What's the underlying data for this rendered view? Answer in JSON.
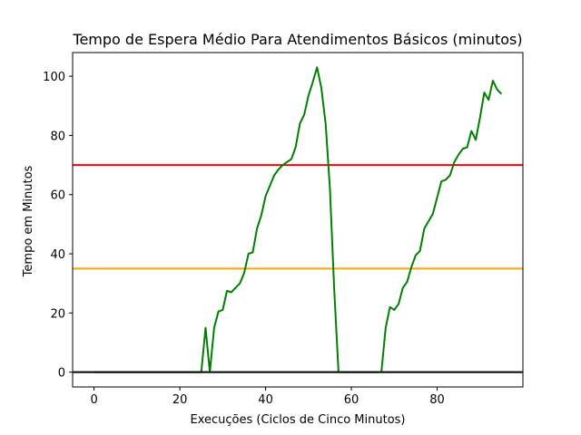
{
  "chart_data": {
    "type": "line",
    "title": "Tempo de Espera Médio Para Atendimentos Básicos (minutos)",
    "xlabel": "Execuções (Ciclos de Cinco Minutos)",
    "ylabel": "Tempo em Minutos",
    "xlim": [
      -5,
      100
    ],
    "ylim": [
      -5,
      108
    ],
    "xticks": [
      0,
      20,
      40,
      60,
      80
    ],
    "yticks": [
      0,
      20,
      40,
      60,
      80,
      100
    ],
    "grid": false,
    "series": [
      {
        "color": "#008000",
        "x": [
          0,
          1,
          2,
          3,
          4,
          5,
          6,
          7,
          8,
          9,
          10,
          11,
          12,
          13,
          14,
          15,
          16,
          17,
          18,
          19,
          20,
          21,
          22,
          23,
          24,
          25,
          26,
          27,
          28,
          29,
          30,
          31,
          32,
          33,
          34,
          35,
          36,
          37,
          38,
          39,
          40,
          41,
          42,
          43,
          44,
          45,
          46,
          47,
          48,
          49,
          50,
          51,
          52,
          53,
          54,
          55,
          56,
          57,
          58,
          59,
          60,
          61,
          62,
          63,
          64,
          65,
          66,
          67,
          68,
          69,
          70,
          71,
          72,
          73,
          74,
          75,
          76,
          77,
          78,
          79,
          80,
          81,
          82,
          83,
          84,
          85,
          86,
          87,
          88,
          89,
          90,
          91,
          92,
          93,
          94,
          95
        ],
        "y": [
          0,
          0,
          0,
          0,
          0,
          0,
          0,
          0,
          0,
          0,
          0,
          0,
          0,
          0,
          0,
          0,
          0,
          0,
          0,
          0,
          0,
          0,
          0,
          0,
          0,
          0,
          15,
          0,
          15,
          20.5,
          21,
          27.5,
          27,
          28.5,
          30,
          33.5,
          40,
          40.5,
          48.5,
          53,
          59.5,
          63,
          66.5,
          68.5,
          70,
          71,
          72,
          76,
          84,
          87,
          93.5,
          98,
          103,
          96,
          84,
          62,
          28,
          0,
          0,
          0,
          0,
          0,
          0,
          0,
          0,
          0,
          0,
          0,
          15,
          22,
          21,
          23,
          28.5,
          30.5,
          35.5,
          39.5,
          41,
          48.5,
          51,
          53.5,
          59,
          64.5,
          65,
          66.5,
          71,
          73.5,
          75.5,
          76,
          81.5,
          78.5,
          86,
          94.5,
          92,
          98.5,
          95.5,
          94
        ]
      }
    ],
    "reference_lines": [
      {
        "y": 70,
        "color": "#ff0000"
      },
      {
        "y": 35,
        "color": "#ffa500"
      },
      {
        "y": 0,
        "color": "#000000"
      }
    ]
  }
}
